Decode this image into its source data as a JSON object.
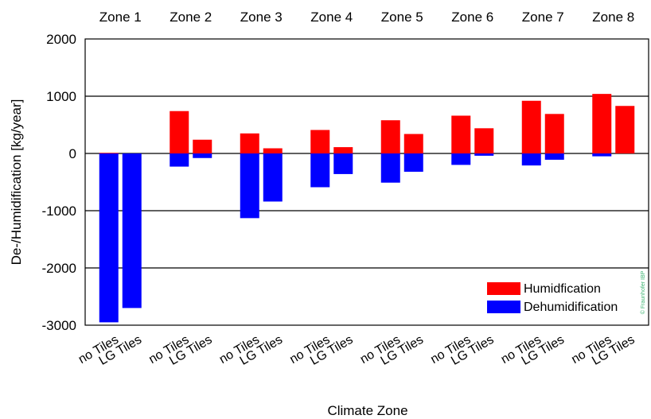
{
  "chart_data": {
    "type": "bar",
    "xlabel": "Climate Zone",
    "ylabel": "De-/Humidification [kg/year]",
    "ylim": [
      -3000,
      2000
    ],
    "yticks": [
      2000,
      1000,
      0,
      -1000,
      -2000,
      -3000
    ],
    "ytick_labels": [
      "2000",
      "1000",
      "0",
      "-1000",
      "-2000",
      "-3000"
    ],
    "grid": "horizontal",
    "legend_position": "bottom-right",
    "zones": [
      "Zone 1",
      "Zone 2",
      "Zone 3",
      "Zone 4",
      "Zone 5",
      "Zone 6",
      "Zone 7",
      "Zone 8"
    ],
    "subcategories": [
      "no Tiles",
      "LG Tiles"
    ],
    "series": [
      {
        "name": "Humidfication",
        "color": "#ff0000",
        "values": [
          [
            10,
            0
          ],
          [
            740,
            240
          ],
          [
            350,
            90
          ],
          [
            410,
            110
          ],
          [
            580,
            340
          ],
          [
            660,
            440
          ],
          [
            920,
            690
          ],
          [
            1040,
            830
          ]
        ]
      },
      {
        "name": "Dehumidification",
        "color": "#0000ff",
        "values": [
          [
            -2950,
            -2700
          ],
          [
            -230,
            -80
          ],
          [
            -1130,
            -840
          ],
          [
            -590,
            -360
          ],
          [
            -510,
            -320
          ],
          [
            -200,
            -40
          ],
          [
            -210,
            -110
          ],
          [
            -50,
            0
          ]
        ]
      }
    ],
    "watermark": "© Fraunhofer IBP"
  }
}
